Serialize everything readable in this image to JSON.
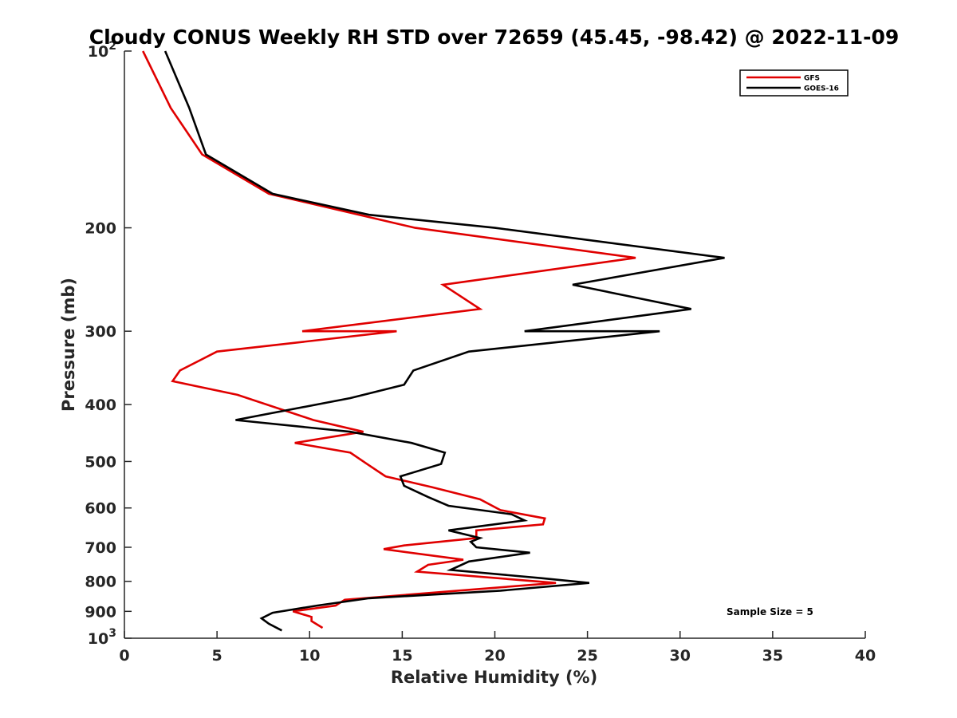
{
  "chart_data": {
    "type": "line",
    "title": "Cloudy CONUS Weekly RH STD over 72659 (45.45, -98.42) @ 2022-11-09",
    "xlabel": "Relative Humidity (%)",
    "ylabel": "Pressure (mb)",
    "xlim": [
      0,
      40
    ],
    "ylim": [
      100,
      1000
    ],
    "y_scale": "log",
    "y_reversed": true,
    "grid": false,
    "legend_position": "top-right",
    "x_ticks": [
      0,
      5,
      10,
      15,
      20,
      25,
      30,
      35,
      40
    ],
    "x_tick_labels": [
      "0",
      "5",
      "10",
      "15",
      "20",
      "25",
      "30",
      "35",
      "40"
    ],
    "y_ticks": [
      100,
      200,
      300,
      400,
      500,
      600,
      700,
      800,
      900,
      1000
    ],
    "y_tick_labels": [
      {
        "base": "10",
        "exp": "2"
      },
      {
        "base": "200",
        "exp": ""
      },
      {
        "base": "300",
        "exp": ""
      },
      {
        "base": "400",
        "exp": ""
      },
      {
        "base": "500",
        "exp": ""
      },
      {
        "base": "600",
        "exp": ""
      },
      {
        "base": "700",
        "exp": ""
      },
      {
        "base": "800",
        "exp": ""
      },
      {
        "base": "900",
        "exp": ""
      },
      {
        "base": "10",
        "exp": "3"
      }
    ],
    "annotation": "Sample Size = 5",
    "series": [
      {
        "name": "GFS",
        "color": "#e00000",
        "points": [
          [
            1.0,
            100
          ],
          [
            2.5,
            125
          ],
          [
            4.2,
            150
          ],
          [
            7.8,
            175
          ],
          [
            15.7,
            200
          ],
          [
            27.6,
            225
          ],
          [
            17.2,
            250
          ],
          [
            19.2,
            275
          ],
          [
            9.6,
            300
          ],
          [
            14.7,
            300
          ],
          [
            5.0,
            325
          ],
          [
            3.0,
            350
          ],
          [
            2.6,
            365
          ],
          [
            6.1,
            385
          ],
          [
            10.2,
            425
          ],
          [
            12.9,
            445
          ],
          [
            9.2,
            465
          ],
          [
            12.2,
            483
          ],
          [
            13.1,
            505
          ],
          [
            14.1,
            530
          ],
          [
            16.6,
            553
          ],
          [
            19.2,
            580
          ],
          [
            20.3,
            605
          ],
          [
            22.7,
            625
          ],
          [
            22.6,
            640
          ],
          [
            19.0,
            655
          ],
          [
            19.0,
            675
          ],
          [
            15.1,
            695
          ],
          [
            14.0,
            705
          ],
          [
            18.3,
            735
          ],
          [
            16.4,
            750
          ],
          [
            15.8,
            770
          ],
          [
            23.3,
            805
          ],
          [
            18.0,
            830
          ],
          [
            11.9,
            860
          ],
          [
            11.4,
            880
          ],
          [
            9.1,
            900
          ],
          [
            10.1,
            920
          ],
          [
            10.1,
            935
          ],
          [
            10.7,
            960
          ]
        ]
      },
      {
        "name": "GOES-16",
        "color": "#000000",
        "points": [
          [
            2.2,
            100
          ],
          [
            3.5,
            125
          ],
          [
            4.4,
            150
          ],
          [
            8.0,
            175
          ],
          [
            13.2,
            190
          ],
          [
            20.0,
            200
          ],
          [
            32.4,
            225
          ],
          [
            24.2,
            250
          ],
          [
            30.6,
            275
          ],
          [
            21.6,
            300
          ],
          [
            28.9,
            300
          ],
          [
            18.6,
            325
          ],
          [
            15.6,
            350
          ],
          [
            15.1,
            370
          ],
          [
            12.2,
            390
          ],
          [
            6.0,
            425
          ],
          [
            12.2,
            445
          ],
          [
            15.5,
            465
          ],
          [
            17.3,
            483
          ],
          [
            17.1,
            505
          ],
          [
            14.9,
            530
          ],
          [
            15.1,
            550
          ],
          [
            16.4,
            575
          ],
          [
            17.5,
            595
          ],
          [
            20.9,
            615
          ],
          [
            21.6,
            630
          ],
          [
            17.5,
            655
          ],
          [
            19.2,
            675
          ],
          [
            18.7,
            685
          ],
          [
            19.0,
            700
          ],
          [
            21.9,
            715
          ],
          [
            18.6,
            740
          ],
          [
            17.6,
            765
          ],
          [
            22.5,
            790
          ],
          [
            25.1,
            805
          ],
          [
            20.3,
            830
          ],
          [
            13.2,
            855
          ],
          [
            10.4,
            880
          ],
          [
            8.0,
            905
          ],
          [
            7.4,
            925
          ],
          [
            7.8,
            945
          ],
          [
            8.5,
            970
          ]
        ]
      }
    ]
  }
}
